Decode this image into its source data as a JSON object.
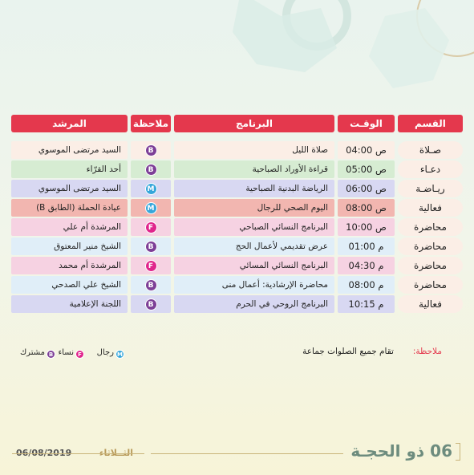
{
  "table": {
    "headers": [
      "القسم",
      "الوقـت",
      "البرنامج",
      "ملاحظة",
      "المرشد"
    ],
    "rows": [
      [
        "صـلاة",
        "04:00 ص",
        "صلاة الليل",
        "B",
        "السيد مرتضى الموسوي"
      ],
      [
        "دعـاء",
        "05:00 ص",
        "قراءة الأوراد الصباحية",
        "B",
        "أحد القرّاء"
      ],
      [
        "ريـاضـة",
        "06:00 ص",
        "الرياضة البدنية الصباحية",
        "M",
        "السيد مرتضى الموسوي"
      ],
      [
        "فعالية",
        "08:00 ص",
        "اليوم الصحي للرجال",
        "M",
        "عيادة الحملة (الطابق B)"
      ],
      [
        "محاضرة",
        "10:00 ص",
        "البرنامج النسائي الصباحي",
        "F",
        "المرشدة أم علي"
      ],
      [
        "محاضرة",
        "01:00 م",
        "عرض تقديمي لأعمال الحج",
        "B",
        "الشيخ منير المعتوق"
      ],
      [
        "محاضرة",
        "04:30 م",
        "البرنامج النسائي المسائي",
        "F",
        "المرشدة أم محمد"
      ],
      [
        "محاضرة",
        "08:00 م",
        "محاضرة الإرشادية: أعمال منى",
        "B",
        "الشيخ علي الصدحي"
      ],
      [
        "فعالية",
        "10:15 م",
        "البرنامج الروحي في الحرم",
        "B",
        "اللجنة الإعلامية"
      ]
    ]
  },
  "note": {
    "label": "ملاحظة:",
    "text": "تقام جميع الصلوات جماعة"
  },
  "legend": [
    {
      "badge": "M",
      "label": "رجال"
    },
    {
      "badge": "F",
      "label": "نساء"
    },
    {
      "badge": "B",
      "label": "مشترك"
    }
  ],
  "footer": {
    "hijri_date": "06 ذو الحجـة",
    "day": "الثــلاثاء",
    "date": "06/08/2019"
  }
}
